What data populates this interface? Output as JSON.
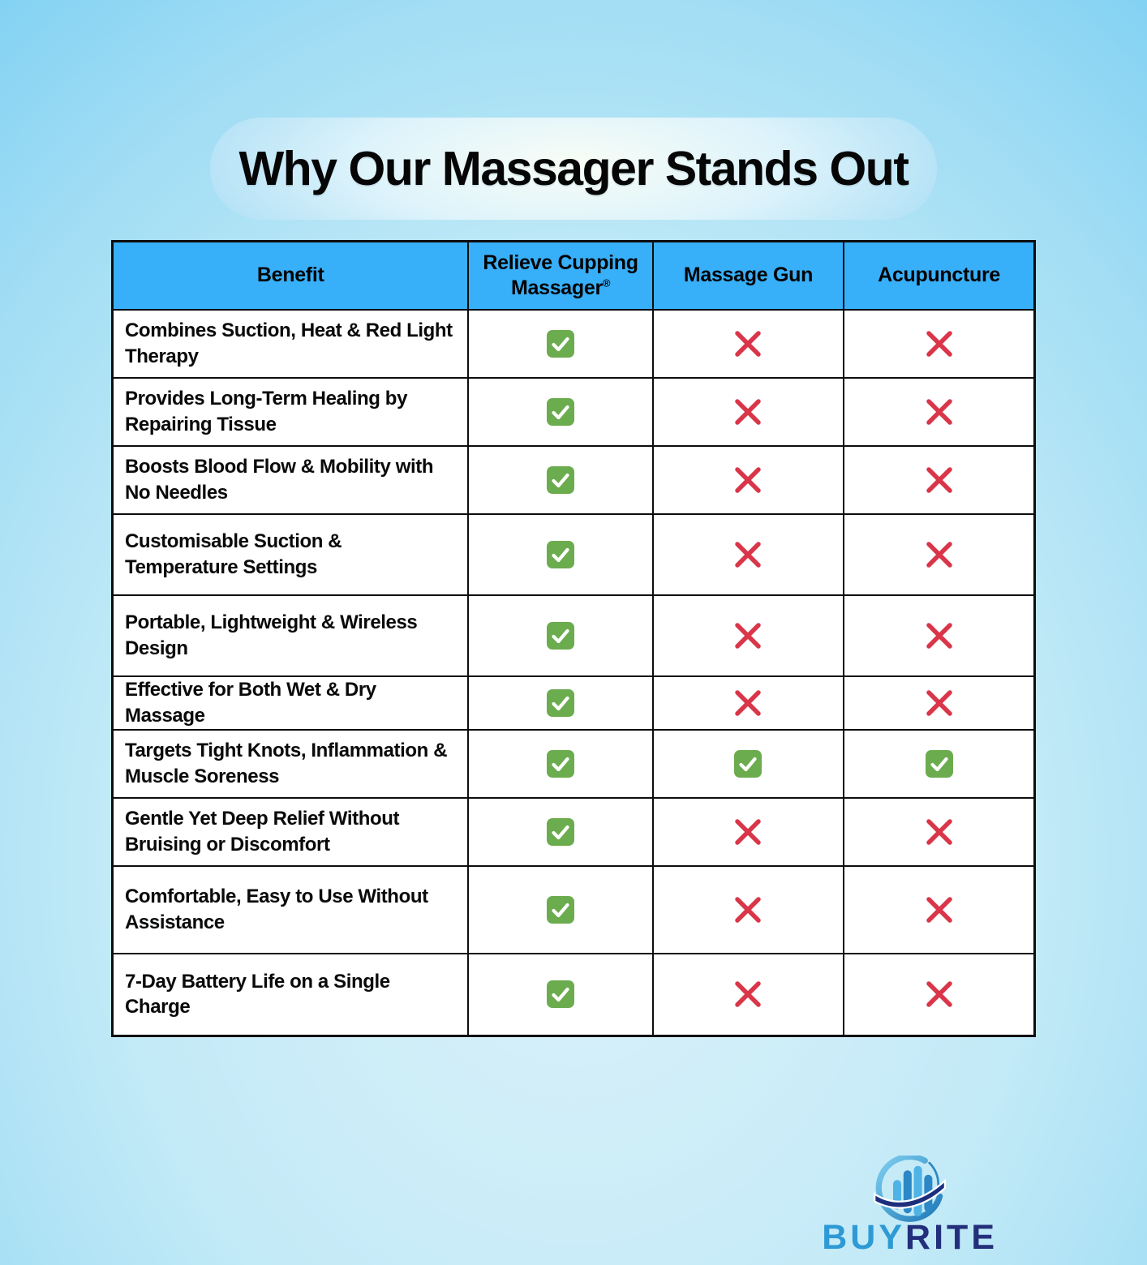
{
  "title": "Why Our Massager Stands Out",
  "colors": {
    "header_blue": "#38aff9",
    "check_green": "#6bac4e",
    "cross_red": "#d9364a",
    "brand_blue": "#2e9ad5",
    "brand_navy": "#232f7b",
    "background_sky": "#58c3f1"
  },
  "icons": {
    "yes": "check-icon",
    "no": "cross-icon",
    "logo": "buyrite-logo-icon"
  },
  "chart_data": {
    "type": "table",
    "title": "Why Our Massager Stands Out",
    "columns": [
      "Benefit",
      "Relieve Cupping Massager®",
      "Massage Gun",
      "Acupuncture"
    ],
    "rows": [
      {
        "benefit": "Combines Suction, Heat & Red Light Therapy",
        "values": [
          true,
          false,
          false
        ]
      },
      {
        "benefit": "Provides Long-Term Healing by Repairing Tissue",
        "values": [
          true,
          false,
          false
        ]
      },
      {
        "benefit": "Boosts Blood Flow & Mobility with No Needles",
        "values": [
          true,
          false,
          false
        ]
      },
      {
        "benefit": "Customisable Suction & Temperature Settings",
        "values": [
          true,
          false,
          false
        ]
      },
      {
        "benefit": "Portable, Lightweight & Wireless Design",
        "values": [
          true,
          false,
          false
        ]
      },
      {
        "benefit": "Effective for Both Wet & Dry Massage",
        "values": [
          true,
          false,
          false
        ]
      },
      {
        "benefit": "Targets Tight Knots, Inflammation & Muscle Soreness",
        "values": [
          true,
          true,
          true
        ]
      },
      {
        "benefit": "Gentle Yet Deep Relief Without Bruising or Discomfort",
        "values": [
          true,
          false,
          false
        ]
      },
      {
        "benefit": "Comfortable, Easy to Use Without Assistance",
        "values": [
          true,
          false,
          false
        ]
      },
      {
        "benefit": "7-Day Battery Life on a Single Charge",
        "values": [
          true,
          false,
          false
        ]
      }
    ]
  },
  "logo": {
    "brand_primary": "BUY",
    "brand_secondary": "RITE"
  }
}
